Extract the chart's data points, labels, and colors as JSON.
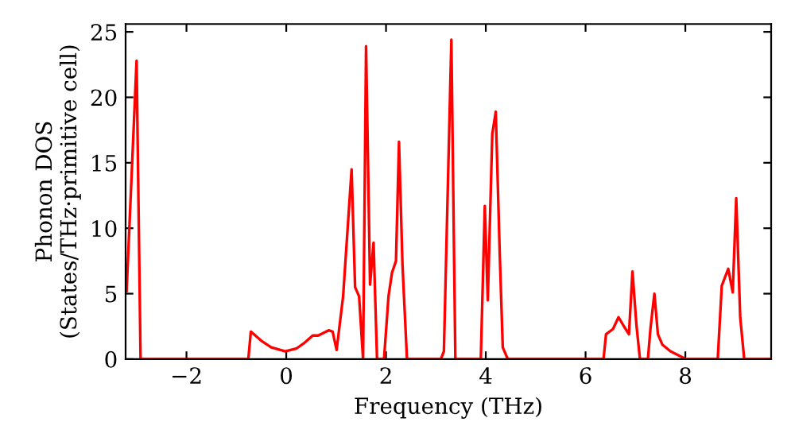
{
  "chart_data": {
    "type": "line",
    "xlabel": "Frequency (THz)",
    "ylabel": "Phonon DOS\n(States/THz·primitive cell)",
    "xlim": [
      -3.22,
      9.72
    ],
    "ylim": [
      0,
      25.6
    ],
    "xticks": [
      -2,
      0,
      2,
      4,
      6,
      8
    ],
    "yticks": [
      0,
      5,
      10,
      15,
      20,
      25
    ],
    "grid": false,
    "marker": "none",
    "line_style": "solid",
    "series": [
      {
        "color": "#ff0000",
        "x": [
          -3.2,
          -3.0,
          -2.92,
          -0.76,
          -0.71,
          -0.5,
          -0.3,
          -0.02,
          0.2,
          0.35,
          0.53,
          0.64,
          0.85,
          0.93,
          1.01,
          1.14,
          1.31,
          1.38,
          1.46,
          1.54,
          1.6,
          1.68,
          1.75,
          1.82,
          1.96,
          2.05,
          2.12,
          2.2,
          2.26,
          2.33,
          2.42,
          3.1,
          3.16,
          3.31,
          3.39,
          3.9,
          3.98,
          4.04,
          4.13,
          4.2,
          4.28,
          4.34,
          4.44,
          6.36,
          6.41,
          6.55,
          6.66,
          6.77,
          6.87,
          6.94,
          7.02,
          7.09,
          7.25,
          7.3,
          7.38,
          7.45,
          7.54,
          7.7,
          7.96,
          8.01,
          8.65,
          8.73,
          8.86,
          8.95,
          9.02,
          9.1,
          9.18,
          9.72
        ],
        "values": [
          5.2,
          22.8,
          0,
          0,
          2.1,
          1.4,
          0.9,
          0.6,
          0.8,
          1.2,
          1.8,
          1.8,
          2.2,
          2.1,
          0.7,
          4.8,
          14.5,
          5.5,
          4.8,
          0,
          23.9,
          5.7,
          8.9,
          0,
          0,
          4.8,
          6.6,
          7.5,
          16.6,
          7.2,
          0,
          0,
          0.6,
          24.4,
          0,
          0,
          11.7,
          4.5,
          17.2,
          18.9,
          8.0,
          0.9,
          0,
          0,
          1.9,
          2.3,
          3.2,
          2.5,
          1.9,
          6.7,
          2.6,
          0,
          0,
          2.3,
          5.0,
          1.9,
          1.1,
          0.6,
          0.1,
          0,
          0,
          5.6,
          6.9,
          5.1,
          12.3,
          3.2,
          0,
          0
        ]
      }
    ]
  }
}
